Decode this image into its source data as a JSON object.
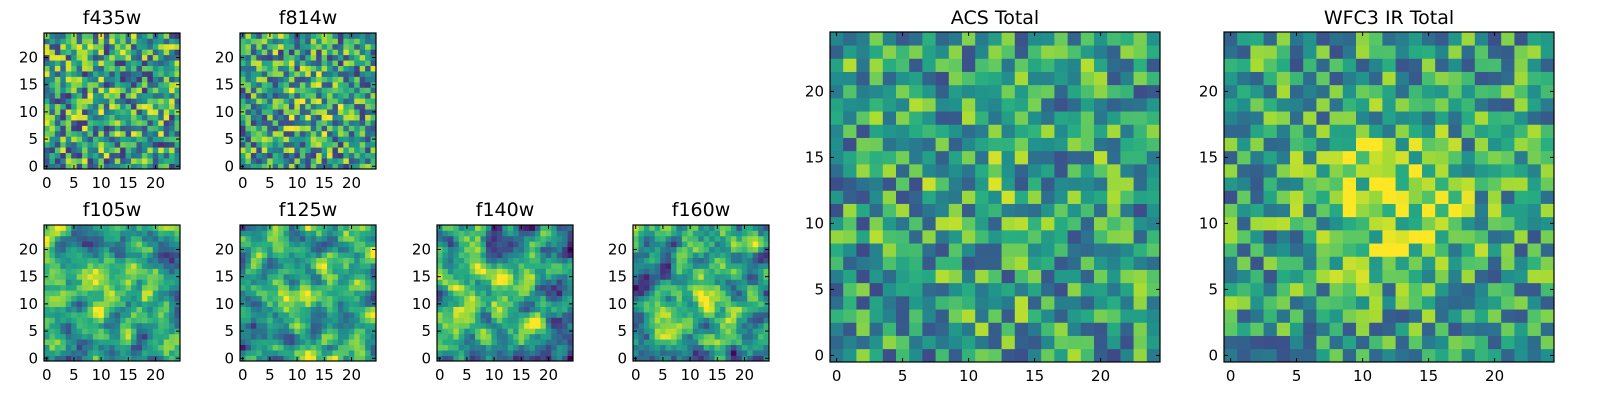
{
  "chart_data": [
    {
      "type": "heatmap",
      "title": "f435w",
      "grid_size": 25,
      "xlim": [
        -0.5,
        24.5
      ],
      "ylim": [
        -0.5,
        24.5
      ],
      "xticks": [
        0,
        5,
        10,
        15,
        20
      ],
      "yticks": [
        0,
        5,
        10,
        15,
        20
      ],
      "colormap": "viridis",
      "seed": 11,
      "noise": 0.42,
      "peak": 0.03,
      "blur": 0
    },
    {
      "type": "heatmap",
      "title": "f814w",
      "grid_size": 25,
      "xlim": [
        -0.5,
        24.5
      ],
      "ylim": [
        -0.5,
        24.5
      ],
      "xticks": [
        0,
        5,
        10,
        15,
        20
      ],
      "yticks": [
        0,
        5,
        10,
        15,
        20
      ],
      "colormap": "viridis",
      "seed": 23,
      "noise": 0.4,
      "peak": 0.12,
      "blur": 0
    },
    {
      "type": "heatmap",
      "title": "f105w",
      "grid_size": 25,
      "xlim": [
        -0.5,
        24.5
      ],
      "ylim": [
        -0.5,
        24.5
      ],
      "xticks": [
        0,
        5,
        10,
        15,
        20
      ],
      "yticks": [
        0,
        5,
        10,
        15,
        20
      ],
      "colormap": "viridis",
      "seed": 37,
      "noise": 0.38,
      "peak": 0.22,
      "blur": 1
    },
    {
      "type": "heatmap",
      "title": "f125w",
      "grid_size": 25,
      "xlim": [
        -0.5,
        24.5
      ],
      "ylim": [
        -0.5,
        24.5
      ],
      "xticks": [
        0,
        5,
        10,
        15,
        20
      ],
      "yticks": [
        0,
        5,
        10,
        15,
        20
      ],
      "colormap": "viridis",
      "seed": 41,
      "noise": 0.4,
      "peak": 0.22,
      "blur": 1
    },
    {
      "type": "heatmap",
      "title": "f140w",
      "grid_size": 25,
      "xlim": [
        -0.5,
        24.5
      ],
      "ylim": [
        -0.5,
        24.5
      ],
      "xticks": [
        0,
        5,
        10,
        15,
        20
      ],
      "yticks": [
        0,
        5,
        10,
        15,
        20
      ],
      "colormap": "viridis",
      "seed": 53,
      "noise": 0.4,
      "peak": 0.16,
      "blur": 1
    },
    {
      "type": "heatmap",
      "title": "f160w",
      "grid_size": 25,
      "xlim": [
        -0.5,
        24.5
      ],
      "ylim": [
        -0.5,
        24.5
      ],
      "xticks": [
        0,
        5,
        10,
        15,
        20
      ],
      "yticks": [
        0,
        5,
        10,
        15,
        20
      ],
      "colormap": "viridis",
      "seed": 67,
      "noise": 0.4,
      "peak": 0.22,
      "blur": 1
    },
    {
      "type": "heatmap",
      "title": "ACS Total",
      "grid_size": 25,
      "xlim": [
        -0.5,
        24.5
      ],
      "ylim": [
        -0.5,
        24.5
      ],
      "xticks": [
        0,
        5,
        10,
        15,
        20
      ],
      "yticks": [
        0,
        5,
        10,
        15,
        20
      ],
      "colormap": "viridis",
      "seed": 79,
      "noise": 0.34,
      "peak": 0.06,
      "blur": 0
    },
    {
      "type": "heatmap",
      "title": "WFC3 IR Total",
      "grid_size": 25,
      "xlim": [
        -0.5,
        24.5
      ],
      "ylim": [
        -0.5,
        24.5
      ],
      "xticks": [
        0,
        5,
        10,
        15,
        20
      ],
      "yticks": [
        0,
        5,
        10,
        15,
        20
      ],
      "colormap": "viridis",
      "seed": 97,
      "noise": 0.32,
      "peak": 0.32,
      "blur": 0
    }
  ]
}
